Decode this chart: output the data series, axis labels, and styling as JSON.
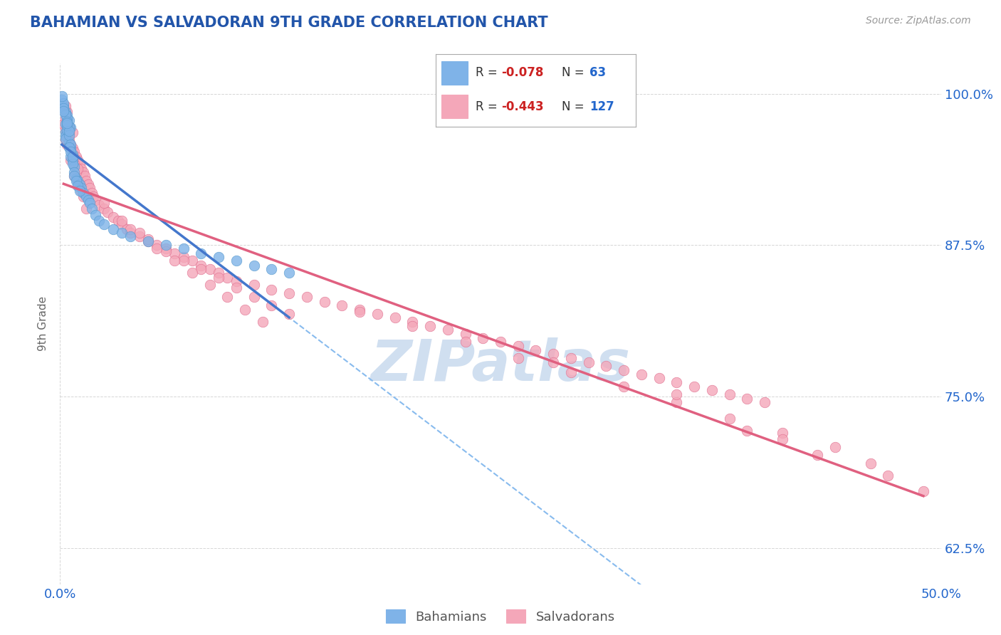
{
  "title": "BAHAMIAN VS SALVADORAN 9TH GRADE CORRELATION CHART",
  "source_text": "Source: ZipAtlas.com",
  "ylabel": "9th Grade",
  "xlim": [
    0.0,
    0.5
  ],
  "ylim": [
    0.595,
    1.025
  ],
  "xtick_labels": [
    "0.0%",
    "50.0%"
  ],
  "xtick_vals": [
    0.0,
    0.5
  ],
  "ytick_labels": [
    "62.5%",
    "75.0%",
    "87.5%",
    "100.0%"
  ],
  "ytick_vals": [
    0.625,
    0.75,
    0.875,
    1.0
  ],
  "bahamian_color": "#7fb3e8",
  "bahamian_edge": "#5599cc",
  "salvadoran_color": "#f4a7b9",
  "salvadoran_edge": "#e07090",
  "bahamian_line_color": "#4477cc",
  "bahamian_dash_color": "#88bbee",
  "salvadoran_line_color": "#e06080",
  "bahamian_R": -0.078,
  "bahamian_N": 63,
  "salvadoran_R": -0.443,
  "salvadoran_N": 127,
  "legend_label_1": "Bahamians",
  "legend_label_2": "Salvadorans",
  "background_color": "#ffffff",
  "grid_color": "#cccccc",
  "title_color": "#2255aa",
  "axis_label_color": "#666666",
  "tick_color": "#2266cc",
  "source_color": "#999999",
  "watermark_text": "ZIPatlas",
  "watermark_color": "#d0dff0",
  "legend_text_color": "#333333",
  "legend_r_color": "#cc2222",
  "legend_n_color": "#2266cc",
  "bahamian_x": [
    0.002,
    0.003,
    0.004,
    0.001,
    0.003,
    0.002,
    0.005,
    0.004,
    0.006,
    0.003,
    0.002,
    0.001,
    0.003,
    0.004,
    0.005,
    0.006,
    0.007,
    0.005,
    0.003,
    0.004,
    0.002,
    0.003,
    0.006,
    0.005,
    0.004,
    0.007,
    0.008,
    0.006,
    0.005,
    0.004,
    0.007,
    0.008,
    0.009,
    0.01,
    0.011,
    0.012,
    0.013,
    0.015,
    0.016,
    0.017,
    0.018,
    0.02,
    0.022,
    0.025,
    0.03,
    0.035,
    0.04,
    0.05,
    0.06,
    0.07,
    0.08,
    0.09,
    0.1,
    0.11,
    0.12,
    0.13,
    0.008,
    0.009,
    0.01,
    0.011,
    0.005,
    0.006,
    0.007
  ],
  "bahamian_y": [
    0.99,
    0.985,
    0.982,
    0.995,
    0.975,
    0.992,
    0.978,
    0.98,
    0.972,
    0.968,
    0.988,
    0.998,
    0.965,
    0.97,
    0.96,
    0.955,
    0.95,
    0.973,
    0.983,
    0.977,
    0.986,
    0.963,
    0.948,
    0.966,
    0.974,
    0.945,
    0.94,
    0.958,
    0.969,
    0.976,
    0.942,
    0.935,
    0.93,
    0.928,
    0.925,
    0.922,
    0.918,
    0.915,
    0.912,
    0.91,
    0.905,
    0.9,
    0.895,
    0.892,
    0.888,
    0.885,
    0.882,
    0.878,
    0.875,
    0.872,
    0.868,
    0.865,
    0.862,
    0.858,
    0.855,
    0.852,
    0.932,
    0.928,
    0.924,
    0.92,
    0.956,
    0.952,
    0.948
  ],
  "salvadoran_x": [
    0.002,
    0.003,
    0.004,
    0.005,
    0.006,
    0.007,
    0.008,
    0.009,
    0.01,
    0.011,
    0.012,
    0.013,
    0.014,
    0.015,
    0.016,
    0.017,
    0.018,
    0.019,
    0.02,
    0.022,
    0.025,
    0.027,
    0.03,
    0.033,
    0.035,
    0.038,
    0.04,
    0.045,
    0.05,
    0.055,
    0.06,
    0.065,
    0.07,
    0.075,
    0.08,
    0.085,
    0.09,
    0.095,
    0.1,
    0.003,
    0.005,
    0.007,
    0.003,
    0.004,
    0.006,
    0.005,
    0.007,
    0.008,
    0.009,
    0.004,
    0.006,
    0.005,
    0.008,
    0.003,
    0.01,
    0.011,
    0.012,
    0.013,
    0.015,
    0.11,
    0.12,
    0.13,
    0.14,
    0.15,
    0.16,
    0.17,
    0.18,
    0.19,
    0.2,
    0.21,
    0.22,
    0.23,
    0.24,
    0.25,
    0.26,
    0.27,
    0.28,
    0.29,
    0.3,
    0.31,
    0.32,
    0.33,
    0.34,
    0.35,
    0.36,
    0.37,
    0.38,
    0.39,
    0.4,
    0.05,
    0.06,
    0.07,
    0.08,
    0.09,
    0.1,
    0.11,
    0.12,
    0.13,
    0.04,
    0.025,
    0.035,
    0.045,
    0.055,
    0.065,
    0.075,
    0.085,
    0.095,
    0.105,
    0.115,
    0.17,
    0.2,
    0.23,
    0.26,
    0.29,
    0.32,
    0.35,
    0.38,
    0.41,
    0.44,
    0.35,
    0.28,
    0.41,
    0.46,
    0.43,
    0.39,
    0.47,
    0.49
  ],
  "salvadoran_y": [
    0.975,
    0.97,
    0.965,
    0.962,
    0.958,
    0.955,
    0.952,
    0.948,
    0.945,
    0.942,
    0.938,
    0.935,
    0.932,
    0.928,
    0.925,
    0.922,
    0.918,
    0.915,
    0.912,
    0.908,
    0.905,
    0.902,
    0.898,
    0.895,
    0.892,
    0.888,
    0.885,
    0.882,
    0.878,
    0.875,
    0.872,
    0.868,
    0.865,
    0.862,
    0.858,
    0.855,
    0.852,
    0.848,
    0.845,
    0.98,
    0.972,
    0.968,
    0.962,
    0.958,
    0.945,
    0.972,
    0.948,
    0.942,
    0.935,
    0.985,
    0.955,
    0.968,
    0.932,
    0.99,
    0.938,
    0.925,
    0.92,
    0.915,
    0.905,
    0.842,
    0.838,
    0.835,
    0.832,
    0.828,
    0.825,
    0.822,
    0.818,
    0.815,
    0.812,
    0.808,
    0.805,
    0.802,
    0.798,
    0.795,
    0.792,
    0.788,
    0.785,
    0.782,
    0.778,
    0.775,
    0.772,
    0.768,
    0.765,
    0.762,
    0.758,
    0.755,
    0.752,
    0.748,
    0.745,
    0.88,
    0.87,
    0.862,
    0.855,
    0.848,
    0.84,
    0.832,
    0.825,
    0.818,
    0.888,
    0.91,
    0.895,
    0.885,
    0.872,
    0.862,
    0.852,
    0.842,
    0.832,
    0.822,
    0.812,
    0.82,
    0.808,
    0.795,
    0.782,
    0.77,
    0.758,
    0.745,
    0.732,
    0.72,
    0.708,
    0.752,
    0.778,
    0.715,
    0.695,
    0.702,
    0.722,
    0.685,
    0.672
  ]
}
